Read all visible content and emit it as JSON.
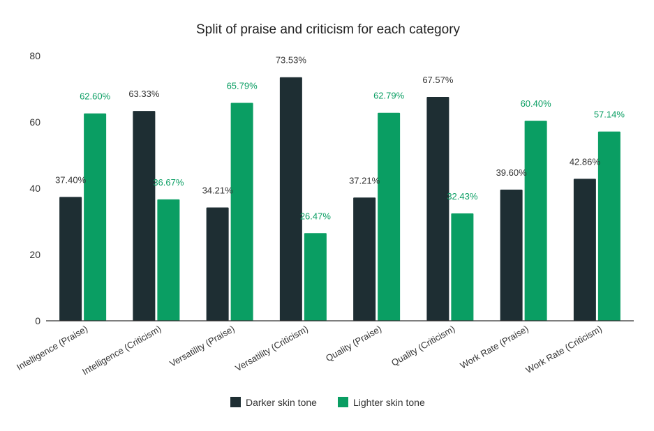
{
  "chart_data": {
    "type": "bar",
    "title": "Split of praise and criticism for each category",
    "xlabel": "",
    "ylabel": "",
    "ylim": [
      0,
      80
    ],
    "yticks": [
      0,
      20,
      40,
      60,
      80
    ],
    "grid": false,
    "legend_position": "bottom",
    "categories": [
      "Intelligence (Praise)",
      "Intelligence (Criticism)",
      "Versatility (Praise)",
      "Versatility (Criticism)",
      "Quality (Praise)",
      "Quality (Criticism)",
      "Work Rate (Praise)",
      "Work Rate (Criticism)"
    ],
    "series": [
      {
        "name": "Darker skin tone",
        "color": "#1e2e33",
        "label_color": "#333333",
        "values": [
          37.4,
          63.33,
          34.21,
          73.53,
          37.21,
          67.57,
          39.6,
          42.86
        ],
        "labels": [
          "37.40%",
          "63.33%",
          "34.21%",
          "73.53%",
          "37.21%",
          "67.57%",
          "39.60%",
          "42.86%"
        ]
      },
      {
        "name": "Lighter skin tone",
        "color": "#0a9e63",
        "label_color": "#0a9e63",
        "values": [
          62.6,
          36.67,
          65.79,
          26.47,
          62.79,
          32.43,
          60.4,
          57.14
        ],
        "labels": [
          "62.60%",
          "36.67%",
          "65.79%",
          "26.47%",
          "62.79%",
          "32.43%",
          "60.40%",
          "57.14%"
        ]
      }
    ]
  }
}
